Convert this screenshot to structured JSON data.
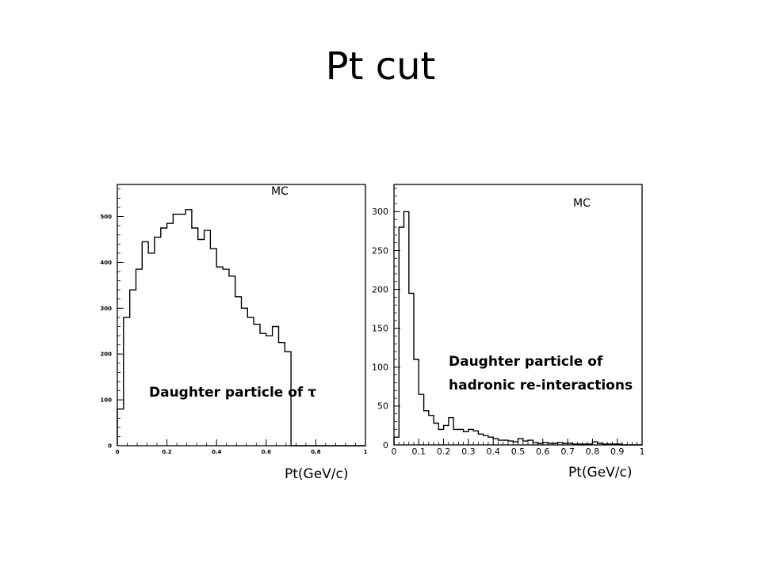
{
  "slide": {
    "title": "Pt cut"
  },
  "chart_data": [
    {
      "type": "histogram",
      "title": "",
      "xlabel": "Pt(GeV/c)",
      "ylabel": "",
      "xlim": [
        0,
        1
      ],
      "ylim": [
        0,
        570
      ],
      "xticks": [
        0,
        0.2,
        0.4,
        0.6,
        0.8,
        1
      ],
      "xtick_labels": [
        "0",
        "0.2",
        "0.4",
        "0.6",
        "0.8",
        "1"
      ],
      "yticks": [
        0,
        100,
        200,
        300,
        400,
        500
      ],
      "ytick_labels": [
        "0",
        "100",
        "200",
        "300",
        "400",
        "500"
      ],
      "grid": false,
      "annotations": [
        "MC",
        "Daughter particle of τ"
      ],
      "bin_edges": [
        0,
        0.025,
        0.05,
        0.075,
        0.1,
        0.125,
        0.15,
        0.175,
        0.2,
        0.225,
        0.25,
        0.275,
        0.3,
        0.325,
        0.35,
        0.375,
        0.4,
        0.425,
        0.45,
        0.475,
        0.5,
        0.525,
        0.55,
        0.575,
        0.6,
        0.625,
        0.65,
        0.675,
        0.7,
        0.725,
        0.75,
        0.775,
        0.8,
        0.825,
        0.85,
        0.875,
        0.9,
        0.925,
        0.95,
        0.975,
        1.0
      ],
      "values": [
        80,
        280,
        340,
        385,
        445,
        420,
        455,
        475,
        485,
        505,
        505,
        515,
        475,
        450,
        470,
        430,
        390,
        385,
        370,
        325,
        300,
        280,
        265,
        245,
        240,
        260,
        225,
        205,
        0,
        0,
        0,
        0,
        0,
        0,
        0,
        0,
        0,
        0,
        0,
        0
      ]
    },
    {
      "type": "histogram",
      "title": "",
      "xlabel": "Pt(GeV/c)",
      "ylabel": "",
      "xlim": [
        0,
        1
      ],
      "ylim": [
        0,
        335
      ],
      "xticks": [
        0,
        0.1,
        0.2,
        0.3,
        0.4,
        0.5,
        0.6,
        0.7,
        0.8,
        0.9,
        1
      ],
      "xtick_labels": [
        "0",
        "0.1",
        "0.2",
        "0.3",
        "0.4",
        "0.5",
        "0.6",
        "0.7",
        "0.8",
        "0.9",
        "1"
      ],
      "yticks": [
        0,
        50,
        100,
        150,
        200,
        250,
        300
      ],
      "ytick_labels": [
        "0",
        "50",
        "100",
        "150",
        "200",
        "250",
        "300"
      ],
      "grid": false,
      "annotations": [
        "MC",
        "Daughter particle of",
        "hadronic re-interactions"
      ],
      "bin_edges": [
        0,
        0.02,
        0.04,
        0.06,
        0.08,
        0.1,
        0.12,
        0.14,
        0.16,
        0.18,
        0.2,
        0.22,
        0.24,
        0.26,
        0.28,
        0.3,
        0.32,
        0.34,
        0.36,
        0.38,
        0.4,
        0.42,
        0.44,
        0.46,
        0.48,
        0.5,
        0.52,
        0.54,
        0.56,
        0.58,
        0.6,
        0.62,
        0.64,
        0.66,
        0.68,
        0.7,
        0.72,
        0.74,
        0.76,
        0.78,
        0.8,
        0.82,
        0.84,
        0.86,
        0.88,
        0.9,
        0.92,
        0.94,
        0.96,
        0.98,
        1.0
      ],
      "values": [
        10,
        280,
        300,
        195,
        110,
        65,
        44,
        38,
        28,
        20,
        25,
        35,
        20,
        20,
        17,
        20,
        18,
        14,
        12,
        10,
        8,
        6,
        6,
        5,
        4,
        8,
        5,
        6,
        3,
        2,
        3,
        2,
        2,
        3,
        2,
        2,
        1,
        1,
        1,
        1,
        4,
        2,
        1,
        1,
        1,
        1,
        0,
        0,
        0,
        0
      ]
    }
  ],
  "charts_meta": [
    {
      "tick_fontsize": 7,
      "tick_bold": true,
      "ytick_suffix_decimals": 0
    },
    {
      "tick_fontsize": 11,
      "tick_bold": false
    }
  ]
}
